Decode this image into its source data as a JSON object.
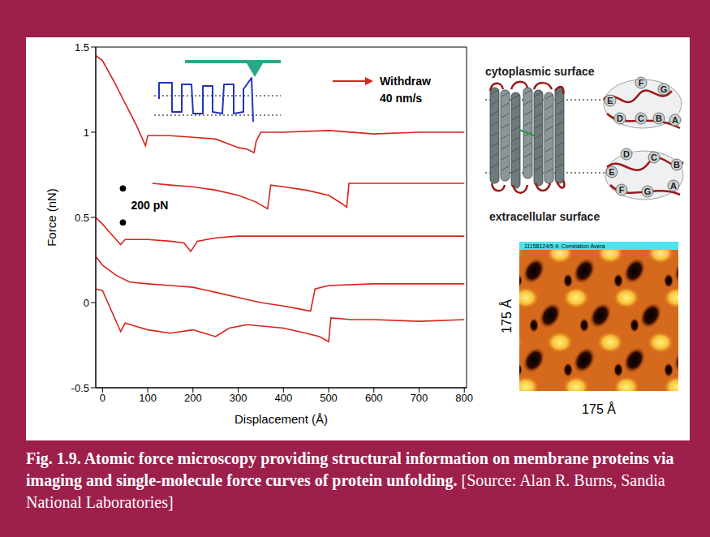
{
  "chart_data": {
    "type": "line",
    "xlabel": "Displacement (Å)",
    "ylabel": "Force (nN)",
    "xlim": [
      -15,
      805
    ],
    "ylim": [
      -0.5,
      1.5
    ],
    "xticks": [
      0,
      100,
      200,
      300,
      400,
      500,
      600,
      700,
      800
    ],
    "yticks": [
      -0.5,
      0,
      0.5,
      1,
      1.5
    ],
    "grid": false,
    "annotations": [
      "Withdraw",
      "40 nm/s"
    ],
    "scale_bar": {
      "label": "200 pN",
      "x": 45,
      "y": [
        0.47,
        0.67
      ]
    },
    "series": [
      {
        "color": "#d8231b",
        "x": [
          -15,
          0,
          25,
          50,
          75,
          95,
          100,
          150,
          200,
          250,
          280,
          300,
          320,
          335,
          340,
          350,
          400,
          500,
          600,
          700,
          800
        ],
        "values": [
          1.45,
          1.42,
          1.3,
          1.17,
          1.04,
          0.92,
          0.98,
          0.98,
          0.97,
          0.96,
          0.93,
          0.91,
          0.9,
          0.88,
          0.95,
          1.0,
          1.0,
          1.01,
          0.99,
          1.0,
          1.0
        ]
      },
      {
        "color": "#d8231b",
        "x": [
          110,
          150,
          200,
          250,
          300,
          340,
          365,
          372,
          400,
          450,
          500,
          530,
          540,
          545,
          600,
          700,
          800
        ],
        "values": [
          0.7,
          0.69,
          0.68,
          0.66,
          0.63,
          0.59,
          0.55,
          0.69,
          0.68,
          0.66,
          0.63,
          0.58,
          0.56,
          0.7,
          0.7,
          0.7,
          0.7
        ]
      },
      {
        "color": "#d8231b",
        "x": [
          -15,
          0,
          20,
          40,
          50,
          100,
          150,
          180,
          195,
          210,
          250,
          300,
          400,
          500,
          600,
          700,
          800
        ],
        "values": [
          0.5,
          0.46,
          0.4,
          0.34,
          0.37,
          0.37,
          0.36,
          0.35,
          0.3,
          0.36,
          0.38,
          0.39,
          0.39,
          0.39,
          0.39,
          0.39,
          0.39
        ]
      },
      {
        "color": "#d8231b",
        "x": [
          -15,
          0,
          30,
          60,
          100,
          150,
          200,
          250,
          300,
          350,
          400,
          440,
          460,
          470,
          500,
          600,
          700,
          800
        ],
        "values": [
          0.27,
          0.22,
          0.16,
          0.12,
          0.11,
          0.1,
          0.09,
          0.06,
          0.03,
          0.0,
          -0.02,
          -0.04,
          -0.05,
          0.08,
          0.1,
          0.11,
          0.11,
          0.11
        ]
      },
      {
        "color": "#d8231b",
        "x": [
          -15,
          0,
          20,
          40,
          50,
          75,
          100,
          150,
          200,
          250,
          280,
          320,
          400,
          450,
          480,
          500,
          505,
          550,
          600,
          700,
          800
        ],
        "values": [
          0.08,
          0.07,
          -0.05,
          -0.17,
          -0.12,
          -0.14,
          -0.16,
          -0.18,
          -0.16,
          -0.2,
          -0.15,
          -0.13,
          -0.15,
          -0.18,
          -0.2,
          -0.23,
          -0.09,
          -0.1,
          -0.1,
          -0.11,
          -0.1
        ]
      }
    ]
  },
  "diagram": {
    "top_label": "cytoplasmic surface",
    "bottom_label": "extracellular surface",
    "cytoplasmic_helices": [
      "E",
      "F",
      "G",
      "D",
      "C",
      "B",
      "A"
    ],
    "extracellular_helices": [
      "D",
      "C",
      "B",
      "E",
      "F",
      "G",
      "A"
    ]
  },
  "image": {
    "title": "11158124/5 4: Correlation Avera",
    "height_label": "175 Å",
    "width_label": "175 Å"
  },
  "caption": {
    "title": "Fig. 1.9. Atomic force microscopy providing structural information on membrane proteins via imaging and single-molecule force curves of protein unfolding.",
    "source": "[Source: Alan R. Burns, Sandia National Laboratories]"
  }
}
